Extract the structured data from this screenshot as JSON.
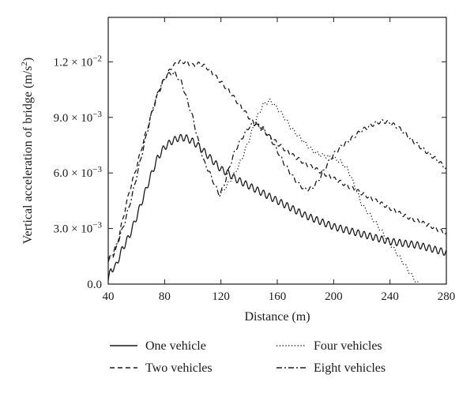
{
  "chart_data": {
    "type": "line",
    "xlabel": "Distance (m)",
    "ylabel": "Vertical acceleration of bridge (m/s",
    "ylabel_superscript": "2",
    "ylabel_suffix": ")",
    "xlim": [
      40,
      280
    ],
    "ylim": [
      0,
      0.0144
    ],
    "xticks": [
      40,
      80,
      120,
      160,
      200,
      240,
      280
    ],
    "yticks": [
      {
        "value": 0,
        "mantissa": "0.0",
        "exponent": ""
      },
      {
        "value": 0.003,
        "mantissa": "3.0",
        "exponent": "−3"
      },
      {
        "value": 0.006,
        "mantissa": "6.0",
        "exponent": "−3"
      },
      {
        "value": 0.009,
        "mantissa": "9.0",
        "exponent": "−3"
      },
      {
        "value": 0.012,
        "mantissa": "1.2",
        "exponent": "−2"
      }
    ],
    "legend_position": "bottom",
    "series": [
      {
        "name": "One vehicle",
        "style": "solid",
        "oscillation": 0.00018,
        "points": [
          [
            40,
            0.0002
          ],
          [
            42,
            0.0008
          ],
          [
            45,
            0.0009
          ],
          [
            50,
            0.0019
          ],
          [
            55,
            0.0026
          ],
          [
            60,
            0.0036
          ],
          [
            65,
            0.0047
          ],
          [
            70,
            0.0058
          ],
          [
            75,
            0.0068
          ],
          [
            80,
            0.0074
          ],
          [
            85,
            0.0077
          ],
          [
            90,
            0.0079
          ],
          [
            95,
            0.0079
          ],
          [
            100,
            0.0077
          ],
          [
            105,
            0.0074
          ],
          [
            110,
            0.007
          ],
          [
            115,
            0.0066
          ],
          [
            120,
            0.0062
          ],
          [
            125,
            0.006
          ],
          [
            130,
            0.0057
          ],
          [
            140,
            0.0053
          ],
          [
            150,
            0.0049
          ],
          [
            160,
            0.0045
          ],
          [
            170,
            0.0041
          ],
          [
            180,
            0.0037
          ],
          [
            190,
            0.0034
          ],
          [
            200,
            0.0031
          ],
          [
            210,
            0.0029
          ],
          [
            220,
            0.0027
          ],
          [
            230,
            0.0025
          ],
          [
            240,
            0.0023
          ],
          [
            250,
            0.0022
          ],
          [
            260,
            0.0021
          ],
          [
            270,
            0.0019
          ],
          [
            280,
            0.0017
          ]
        ]
      },
      {
        "name": "Two vehicles",
        "style": "dashed",
        "oscillation": 0.0001,
        "points": [
          [
            40,
            0.0012
          ],
          [
            45,
            0.0017
          ],
          [
            50,
            0.0034
          ],
          [
            55,
            0.005
          ],
          [
            60,
            0.0063
          ],
          [
            65,
            0.0077
          ],
          [
            70,
            0.009
          ],
          [
            75,
            0.0102
          ],
          [
            80,
            0.0111
          ],
          [
            85,
            0.0117
          ],
          [
            90,
            0.012
          ],
          [
            95,
            0.012
          ],
          [
            100,
            0.0118
          ],
          [
            105,
            0.0119
          ],
          [
            110,
            0.0117
          ],
          [
            115,
            0.0113
          ],
          [
            120,
            0.0109
          ],
          [
            125,
            0.0105
          ],
          [
            130,
            0.01
          ],
          [
            135,
            0.0095
          ],
          [
            140,
            0.009
          ],
          [
            145,
            0.0086
          ],
          [
            150,
            0.0083
          ],
          [
            160,
            0.0076
          ],
          [
            170,
            0.007
          ],
          [
            180,
            0.0065
          ],
          [
            190,
            0.0061
          ],
          [
            200,
            0.0057
          ],
          [
            210,
            0.0053
          ],
          [
            220,
            0.0049
          ],
          [
            230,
            0.0045
          ],
          [
            240,
            0.0041
          ],
          [
            250,
            0.0037
          ],
          [
            260,
            0.0034
          ],
          [
            270,
            0.0031
          ],
          [
            280,
            0.0027
          ]
        ]
      },
      {
        "name": "Four vehicles",
        "style": "dotted",
        "oscillation": 0.0001,
        "points": [
          [
            120,
            0.0049
          ],
          [
            125,
            0.0054
          ],
          [
            130,
            0.006
          ],
          [
            135,
            0.0068
          ],
          [
            140,
            0.0078
          ],
          [
            145,
            0.0089
          ],
          [
            150,
            0.0097
          ],
          [
            155,
            0.0099
          ],
          [
            160,
            0.0095
          ],
          [
            165,
            0.009
          ],
          [
            170,
            0.0084
          ],
          [
            175,
            0.008
          ],
          [
            180,
            0.0076
          ],
          [
            185,
            0.0072
          ],
          [
            190,
            0.007
          ],
          [
            195,
            0.0069
          ],
          [
            200,
            0.0068
          ],
          [
            205,
            0.0066
          ],
          [
            210,
            0.0062
          ],
          [
            215,
            0.0053
          ],
          [
            220,
            0.0043
          ],
          [
            230,
            0.0033
          ],
          [
            240,
            0.0022
          ],
          [
            250,
            0.0011
          ],
          [
            255,
            0.0005
          ],
          [
            260,
            0
          ]
        ]
      },
      {
        "name": "Eight vehicles",
        "style": "dashdot",
        "oscillation": 0.0001,
        "points": [
          [
            40,
            0.0013
          ],
          [
            43,
            0.0016
          ],
          [
            47,
            0.0023
          ],
          [
            52,
            0.0034
          ],
          [
            57,
            0.0048
          ],
          [
            62,
            0.0064
          ],
          [
            67,
            0.008
          ],
          [
            72,
            0.0096
          ],
          [
            77,
            0.0107
          ],
          [
            82,
            0.0113
          ],
          [
            87,
            0.0114
          ],
          [
            92,
            0.0109
          ],
          [
            97,
            0.0097
          ],
          [
            100,
            0.009
          ],
          [
            104,
            0.0077
          ],
          [
            108,
            0.0066
          ],
          [
            112,
            0.006
          ],
          [
            116,
            0.0053
          ],
          [
            119,
            0.0048
          ],
          [
            122,
            0.0053
          ],
          [
            126,
            0.0063
          ],
          [
            130,
            0.0072
          ],
          [
            135,
            0.0079
          ],
          [
            140,
            0.0085
          ],
          [
            145,
            0.0087
          ],
          [
            150,
            0.0084
          ],
          [
            155,
            0.0079
          ],
          [
            160,
            0.0072
          ],
          [
            165,
            0.0065
          ],
          [
            170,
            0.0059
          ],
          [
            175,
            0.0054
          ],
          [
            180,
            0.0051
          ],
          [
            185,
            0.0052
          ],
          [
            190,
            0.0057
          ],
          [
            195,
            0.0064
          ],
          [
            200,
            0.007
          ],
          [
            205,
            0.0074
          ],
          [
            210,
            0.0077
          ],
          [
            215,
            0.008
          ],
          [
            220,
            0.0083
          ],
          [
            225,
            0.0085
          ],
          [
            230,
            0.0087
          ],
          [
            235,
            0.0088
          ],
          [
            240,
            0.0087
          ],
          [
            245,
            0.0085
          ],
          [
            250,
            0.0082
          ],
          [
            255,
            0.0078
          ],
          [
            260,
            0.0075
          ],
          [
            265,
            0.0072
          ],
          [
            270,
            0.0069
          ],
          [
            275,
            0.0066
          ],
          [
            280,
            0.0062
          ]
        ]
      }
    ]
  }
}
